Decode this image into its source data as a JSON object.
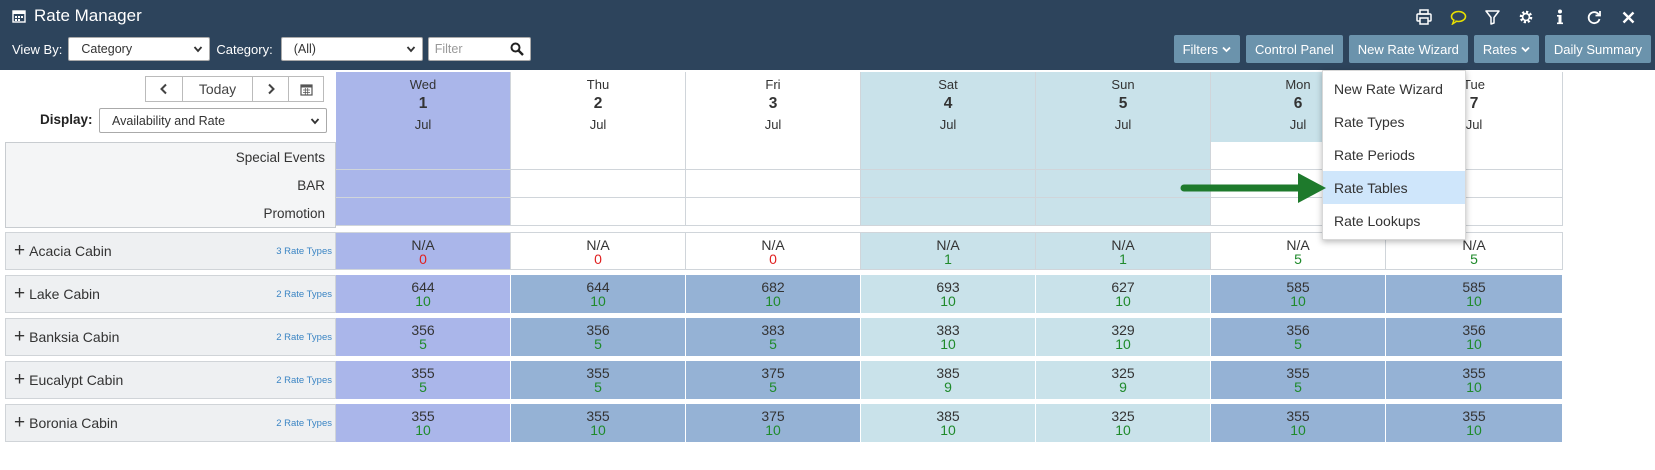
{
  "app": {
    "title": "Rate Manager"
  },
  "toolbar_icons": [
    "print-icon",
    "chat-icon",
    "filter-icon",
    "gear-icon",
    "info-icon",
    "refresh-icon",
    "close-icon"
  ],
  "controls": {
    "view_by_label": "View By:",
    "view_by_value": "Category",
    "category_label": "Category:",
    "category_value": "(All)",
    "filter_placeholder": "Filter"
  },
  "buttons": {
    "filters": "Filters",
    "control_panel": "Control Panel",
    "new_rate_wizard": "New Rate Wizard",
    "rates": "Rates",
    "daily_summary": "Daily Summary"
  },
  "date_nav": {
    "today": "Today"
  },
  "display": {
    "label": "Display:",
    "value": "Availability and Rate"
  },
  "days": [
    {
      "dow": "Wed",
      "day": "1",
      "month": "Jul"
    },
    {
      "dow": "Thu",
      "day": "2",
      "month": "Jul"
    },
    {
      "dow": "Fri",
      "day": "3",
      "month": "Jul"
    },
    {
      "dow": "Sat",
      "day": "4",
      "month": "Jul"
    },
    {
      "dow": "Sun",
      "day": "5",
      "month": "Jul"
    },
    {
      "dow": "Mon",
      "day": "6",
      "month": "Jul"
    },
    {
      "dow": "Tue",
      "day": "7",
      "month": "Jul"
    }
  ],
  "row_labels": {
    "special_events": "Special Events",
    "bar": "BAR",
    "promotion": "Promotion"
  },
  "rooms": [
    {
      "name": "Acacia Cabin",
      "rate_types": "3 Rate Types",
      "cells": [
        [
          "N/A",
          "0"
        ],
        [
          "N/A",
          "0"
        ],
        [
          "N/A",
          "0"
        ],
        [
          "N/A",
          "1"
        ],
        [
          "N/A",
          "1"
        ],
        [
          "N/A",
          "5"
        ],
        [
          "N/A",
          "5"
        ]
      ]
    },
    {
      "name": "Lake Cabin",
      "rate_types": "2 Rate Types",
      "cells": [
        [
          "644",
          "10"
        ],
        [
          "644",
          "10"
        ],
        [
          "682",
          "10"
        ],
        [
          "693",
          "10"
        ],
        [
          "627",
          "10"
        ],
        [
          "585",
          "10"
        ],
        [
          "585",
          "10"
        ]
      ]
    },
    {
      "name": "Banksia Cabin",
      "rate_types": "2 Rate Types",
      "cells": [
        [
          "356",
          "5"
        ],
        [
          "356",
          "5"
        ],
        [
          "383",
          "5"
        ],
        [
          "383",
          "10"
        ],
        [
          "329",
          "10"
        ],
        [
          "356",
          "5"
        ],
        [
          "356",
          "10"
        ]
      ]
    },
    {
      "name": "Eucalypt Cabin",
      "rate_types": "2 Rate Types",
      "cells": [
        [
          "355",
          "5"
        ],
        [
          "355",
          "5"
        ],
        [
          "375",
          "5"
        ],
        [
          "385",
          "9"
        ],
        [
          "325",
          "9"
        ],
        [
          "355",
          "5"
        ],
        [
          "355",
          "10"
        ]
      ]
    },
    {
      "name": "Boronia Cabin",
      "rate_types": "2 Rate Types",
      "cells": [
        [
          "355",
          "10"
        ],
        [
          "355",
          "10"
        ],
        [
          "375",
          "10"
        ],
        [
          "385",
          "10"
        ],
        [
          "325",
          "10"
        ],
        [
          "355",
          "10"
        ],
        [
          "355",
          "10"
        ]
      ]
    }
  ],
  "rates_menu": {
    "items": [
      "New Rate Wizard",
      "Rate Types",
      "Rate Periods",
      "Rate Tables",
      "Rate Lookups"
    ],
    "selected": "Rate Tables"
  },
  "colors": {
    "header_bg": "#2d445c",
    "button_bg": "#6b93ac",
    "today_col": "#aab6ea",
    "weekend_col": "#c9e2ea",
    "weekday_rate": "#95b2d5",
    "weekend_rate": "#c9e2ea",
    "avail_green": "#1f8a2b",
    "avail_red": "#e02020",
    "arrow_green": "#1e7a2c",
    "menu_selected": "#cfe6fb"
  }
}
